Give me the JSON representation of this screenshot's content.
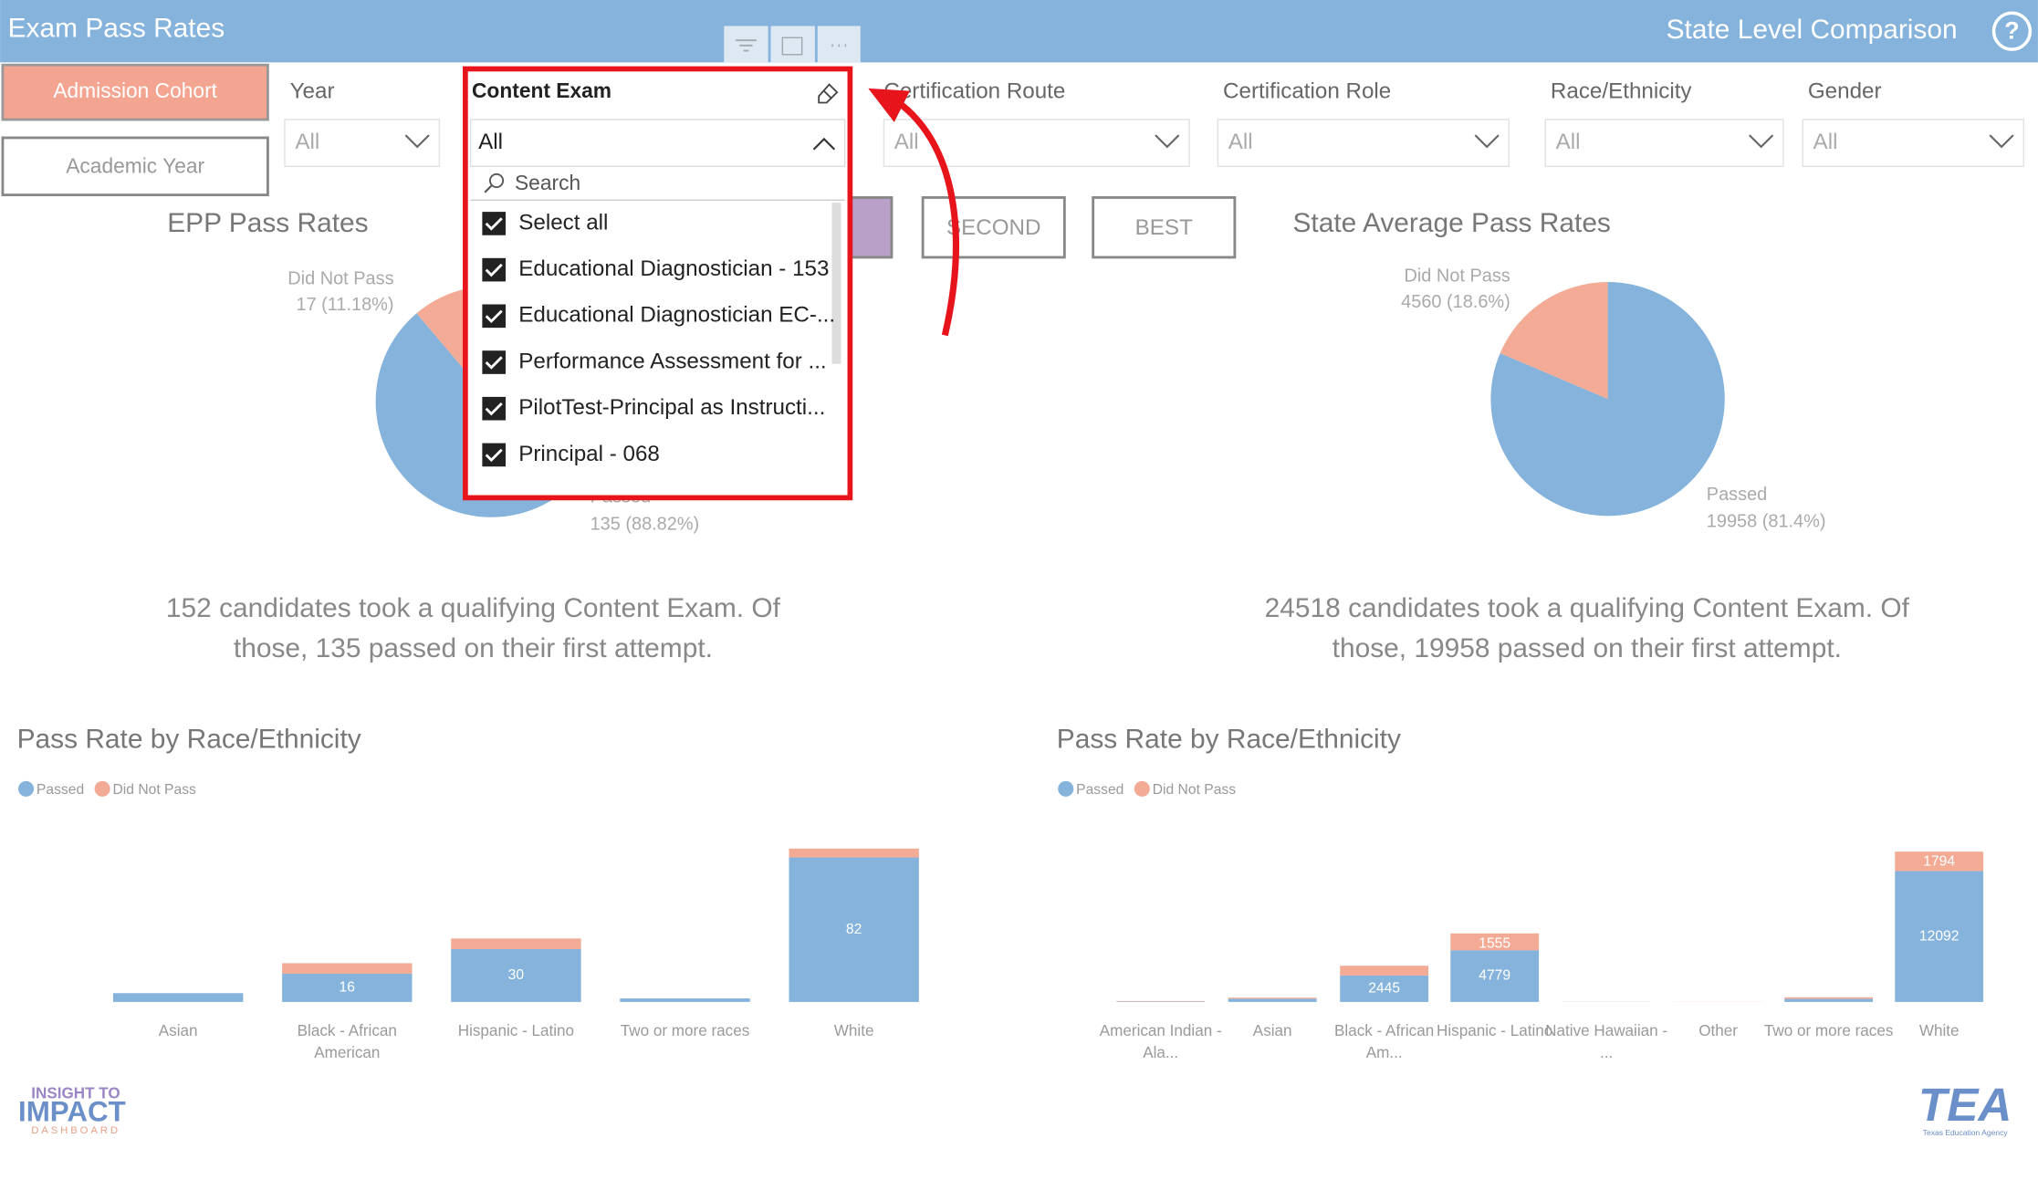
{
  "header": {
    "title": "Exam Pass Rates",
    "subtitle": "State Level Comparison",
    "help": "?"
  },
  "toggles": [
    "Admission Cohort",
    "Academic Year"
  ],
  "filters": [
    {
      "label": "Year",
      "value": "All"
    },
    {
      "label": "Content Exam",
      "value": "All"
    },
    {
      "label": "Certification Route",
      "value": "All"
    },
    {
      "label": "Certification Role",
      "value": "All"
    },
    {
      "label": "Race/Ethnicity",
      "value": "All"
    },
    {
      "label": "Gender",
      "value": "All"
    }
  ],
  "dropdown": {
    "search": "Search",
    "options": [
      "Select all",
      "Educational Diagnostician - 153",
      "Educational Diagnostician EC-...",
      "Performance Assessment for ...",
      "PilotTest-Principal as Instructi...",
      "Principal - 068"
    ]
  },
  "buttons": [
    "SECOND",
    "BEST"
  ],
  "left": {
    "pie": {
      "type": "pie",
      "title": "EPP Pass Rates",
      "categories": [
        "Passed",
        "Did Not Pass"
      ],
      "values": [
        135,
        17
      ],
      "value_labels": [
        "135 (88.82%)",
        "17 (11.18%)"
      ],
      "colors": [
        "#85b3dc",
        "#f4ab96"
      ]
    },
    "summary": [
      "152 candidates took a qualifying Content Exam. Of",
      "those, 135 passed on their first attempt."
    ],
    "bar": {
      "type": "bar",
      "stacked": true,
      "title": "Pass Rate by Race/Ethnicity",
      "categories": [
        "Asian",
        "Black - African American",
        "Hispanic - Latino",
        "Two or more races",
        "White"
      ],
      "series": [
        {
          "name": "Passed",
          "color": "#85b3dc",
          "values": [
            5,
            16,
            30,
            2,
            82
          ]
        },
        {
          "name": "Did Not Pass",
          "color": "#f4ab96",
          "values": [
            0,
            6,
            6,
            0,
            5
          ]
        }
      ]
    }
  },
  "right": {
    "pie": {
      "type": "pie",
      "title": "State Average Pass Rates",
      "categories": [
        "Passed",
        "Did Not Pass"
      ],
      "values": [
        19958,
        4560
      ],
      "value_labels": [
        "19958 (81.4%)",
        "4560 (18.6%)"
      ],
      "colors": [
        "#85b3dc",
        "#f4ab96"
      ]
    },
    "summary": [
      "24518 candidates took a qualifying Content Exam. Of",
      "those, 19958 passed on their first attempt."
    ],
    "bar": {
      "type": "bar",
      "stacked": true,
      "title": "Pass Rate by Race/Ethnicity",
      "categories": [
        "American Indian - Ala...",
        "Asian",
        "Black - African Am...",
        "Hispanic - Latino",
        "Native Hawaiian - ...",
        "Other",
        "Two or more races",
        "White"
      ],
      "series": [
        {
          "name": "Passed",
          "color": "#85b3dc",
          "values": [
            50,
            300,
            2445,
            4779,
            10,
            0,
            282,
            12092
          ]
        },
        {
          "name": "Did Not Pass",
          "color": "#f4ab96",
          "values": [
            40,
            100,
            900,
            1555,
            10,
            11,
            150,
            1794
          ]
        }
      ]
    }
  },
  "logos": {
    "left": [
      "INSIGHT TO",
      "IMPACT",
      "DASHBOARD"
    ],
    "right": [
      "TEA",
      "Texas Education Agency"
    ]
  }
}
